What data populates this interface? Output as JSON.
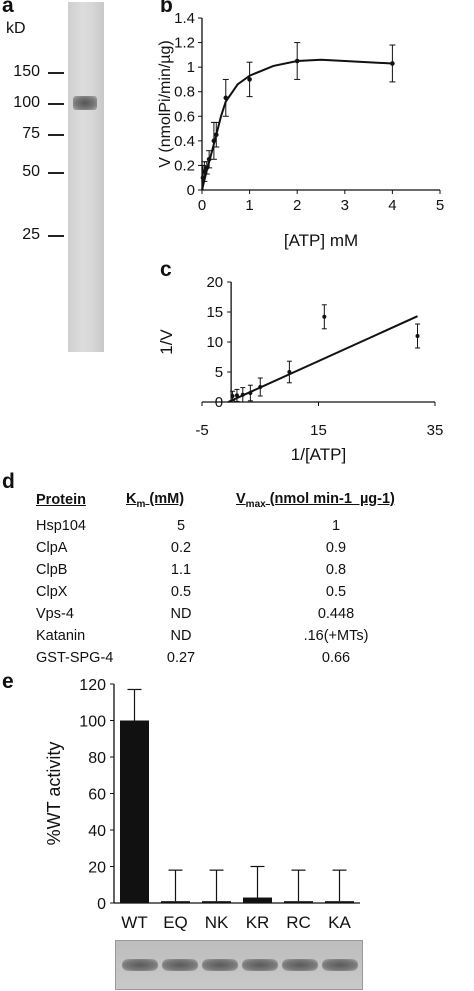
{
  "panel_labels": {
    "a": "a",
    "b": "b",
    "c": "c",
    "d": "d",
    "e": "e"
  },
  "gel": {
    "unit_label": "kD",
    "markers": [
      "150",
      "100",
      "75",
      "50",
      "25"
    ]
  },
  "chart_data": [
    {
      "id": "b",
      "type": "line",
      "xlabel": "[ATP] mM",
      "ylabel": "V (nmolPi/min/µg)",
      "xlim": [
        0,
        5
      ],
      "ylim": [
        0,
        1.4
      ],
      "xticks": [
        "0",
        "1",
        "2",
        "3",
        "4",
        "5"
      ],
      "yticks": [
        "0",
        "0.2",
        "0.4",
        "0.6",
        "0.8",
        "1",
        "1.2",
        "1.4"
      ],
      "points": [
        {
          "x": 0.02,
          "y": 0.1,
          "err": 0.1
        },
        {
          "x": 0.05,
          "y": 0.15,
          "err": 0.08
        },
        {
          "x": 0.1,
          "y": 0.18,
          "err": 0.05
        },
        {
          "x": 0.15,
          "y": 0.25,
          "err": 0.07
        },
        {
          "x": 0.25,
          "y": 0.4,
          "err": 0.15
        },
        {
          "x": 0.3,
          "y": 0.45,
          "err": 0.1
        },
        {
          "x": 0.5,
          "y": 0.75,
          "err": 0.15
        },
        {
          "x": 1.0,
          "y": 0.9,
          "err": 0.14
        },
        {
          "x": 2.0,
          "y": 1.05,
          "err": 0.15
        },
        {
          "x": 4.0,
          "y": 1.03,
          "err": 0.15
        }
      ],
      "fit": [
        [
          0,
          0
        ],
        [
          0.1,
          0.16
        ],
        [
          0.2,
          0.3
        ],
        [
          0.3,
          0.45
        ],
        [
          0.4,
          0.6
        ],
        [
          0.5,
          0.72
        ],
        [
          0.75,
          0.86
        ],
        [
          1.0,
          0.93
        ],
        [
          1.5,
          1.01
        ],
        [
          2.0,
          1.05
        ],
        [
          2.5,
          1.06
        ],
        [
          3.0,
          1.05
        ],
        [
          4.0,
          1.03
        ]
      ]
    },
    {
      "id": "c",
      "type": "scatter",
      "xlabel": "1/[ATP]",
      "ylabel": "1/V",
      "xlim": [
        -5,
        35
      ],
      "ylim": [
        0,
        20
      ],
      "xticks": [
        "-5",
        "15",
        "35"
      ],
      "yticks": [
        "0",
        "5",
        "10",
        "15",
        "20"
      ],
      "points": [
        {
          "x": 0.25,
          "y": 1.0,
          "err": 0.8
        },
        {
          "x": 1.0,
          "y": 1.1,
          "err": 1.0
        },
        {
          "x": 2.0,
          "y": 1.2,
          "err": 1.2
        },
        {
          "x": 3.3,
          "y": 1.5,
          "err": 1.3
        },
        {
          "x": 5.0,
          "y": 2.5,
          "err": 1.5
        },
        {
          "x": 10.0,
          "y": 5.0,
          "err": 1.8
        },
        {
          "x": 16.0,
          "y": 14.2,
          "err": 2.0
        },
        {
          "x": 32.0,
          "y": 11.0,
          "err": 2.0
        }
      ],
      "fit": [
        [
          -0.5,
          0
        ],
        [
          32,
          14.3
        ]
      ]
    },
    {
      "id": "e",
      "type": "bar",
      "ylabel": "%WT activity",
      "ylim": [
        0,
        120
      ],
      "yticks": [
        "0",
        "20",
        "40",
        "60",
        "80",
        "100",
        "120"
      ],
      "categories": [
        "WT",
        "EQ",
        "NK",
        "KR",
        "RC",
        "KA"
      ],
      "values": [
        100,
        1,
        1,
        3,
        1,
        1
      ],
      "errors": [
        17,
        17,
        17,
        17,
        17,
        17
      ]
    }
  ],
  "table": {
    "headers": {
      "protein": "Protein",
      "km_main": "K",
      "km_sub": "m",
      "km_unit": " (mM)",
      "vmax_main": "V",
      "vmax_sub": "max",
      "vmax_unit": " (nmol min-1  µg-1)"
    },
    "rows": [
      {
        "protein": "Hsp104",
        "km": "5",
        "vmax": "1"
      },
      {
        "protein": "ClpA",
        "km": "0.2",
        "vmax": "0.9"
      },
      {
        "protein": "ClpB",
        "km": "1.1",
        "vmax": "0.8"
      },
      {
        "protein": "ClpX",
        "km": "0.5",
        "vmax": "0.5"
      },
      {
        "protein": "Vps-4",
        "km": "ND",
        "vmax": "0.448"
      },
      {
        "protein": "Katanin",
        "km": "ND",
        "vmax": ".16(+MTs)"
      },
      {
        "protein": "GST-SPG-4",
        "km": "0.27",
        "vmax": "0.66"
      }
    ]
  }
}
